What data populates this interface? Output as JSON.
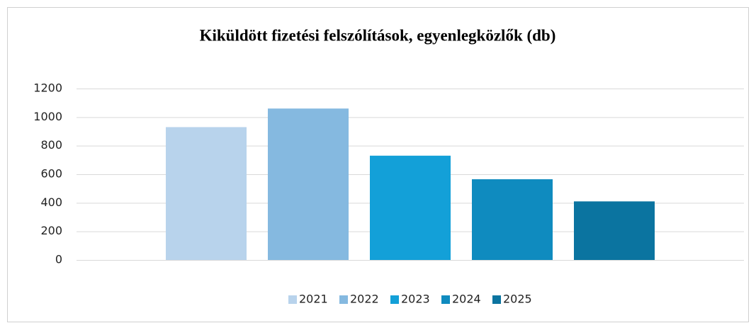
{
  "chart_data": {
    "type": "bar",
    "title": "Kiküldött fizetési felszólítások, egyenlegközlők  (db)",
    "categories": [
      null
    ],
    "series": [
      {
        "name": "2021",
        "color": "#b8d3ec",
        "values": [
          930
        ]
      },
      {
        "name": "2022",
        "color": "#85b9e0",
        "values": [
          1060
        ]
      },
      {
        "name": "2023",
        "color": "#13a0d8",
        "values": [
          730
        ]
      },
      {
        "name": "2024",
        "color": "#0f8bbf",
        "values": [
          565
        ]
      },
      {
        "name": "2025",
        "color": "#0b74a0",
        "values": [
          410
        ]
      }
    ],
    "ylim": [
      0,
      1200
    ],
    "yticks": [
      0,
      200,
      400,
      600,
      800,
      1000,
      1200
    ],
    "grid": true,
    "legend": "bottom"
  }
}
